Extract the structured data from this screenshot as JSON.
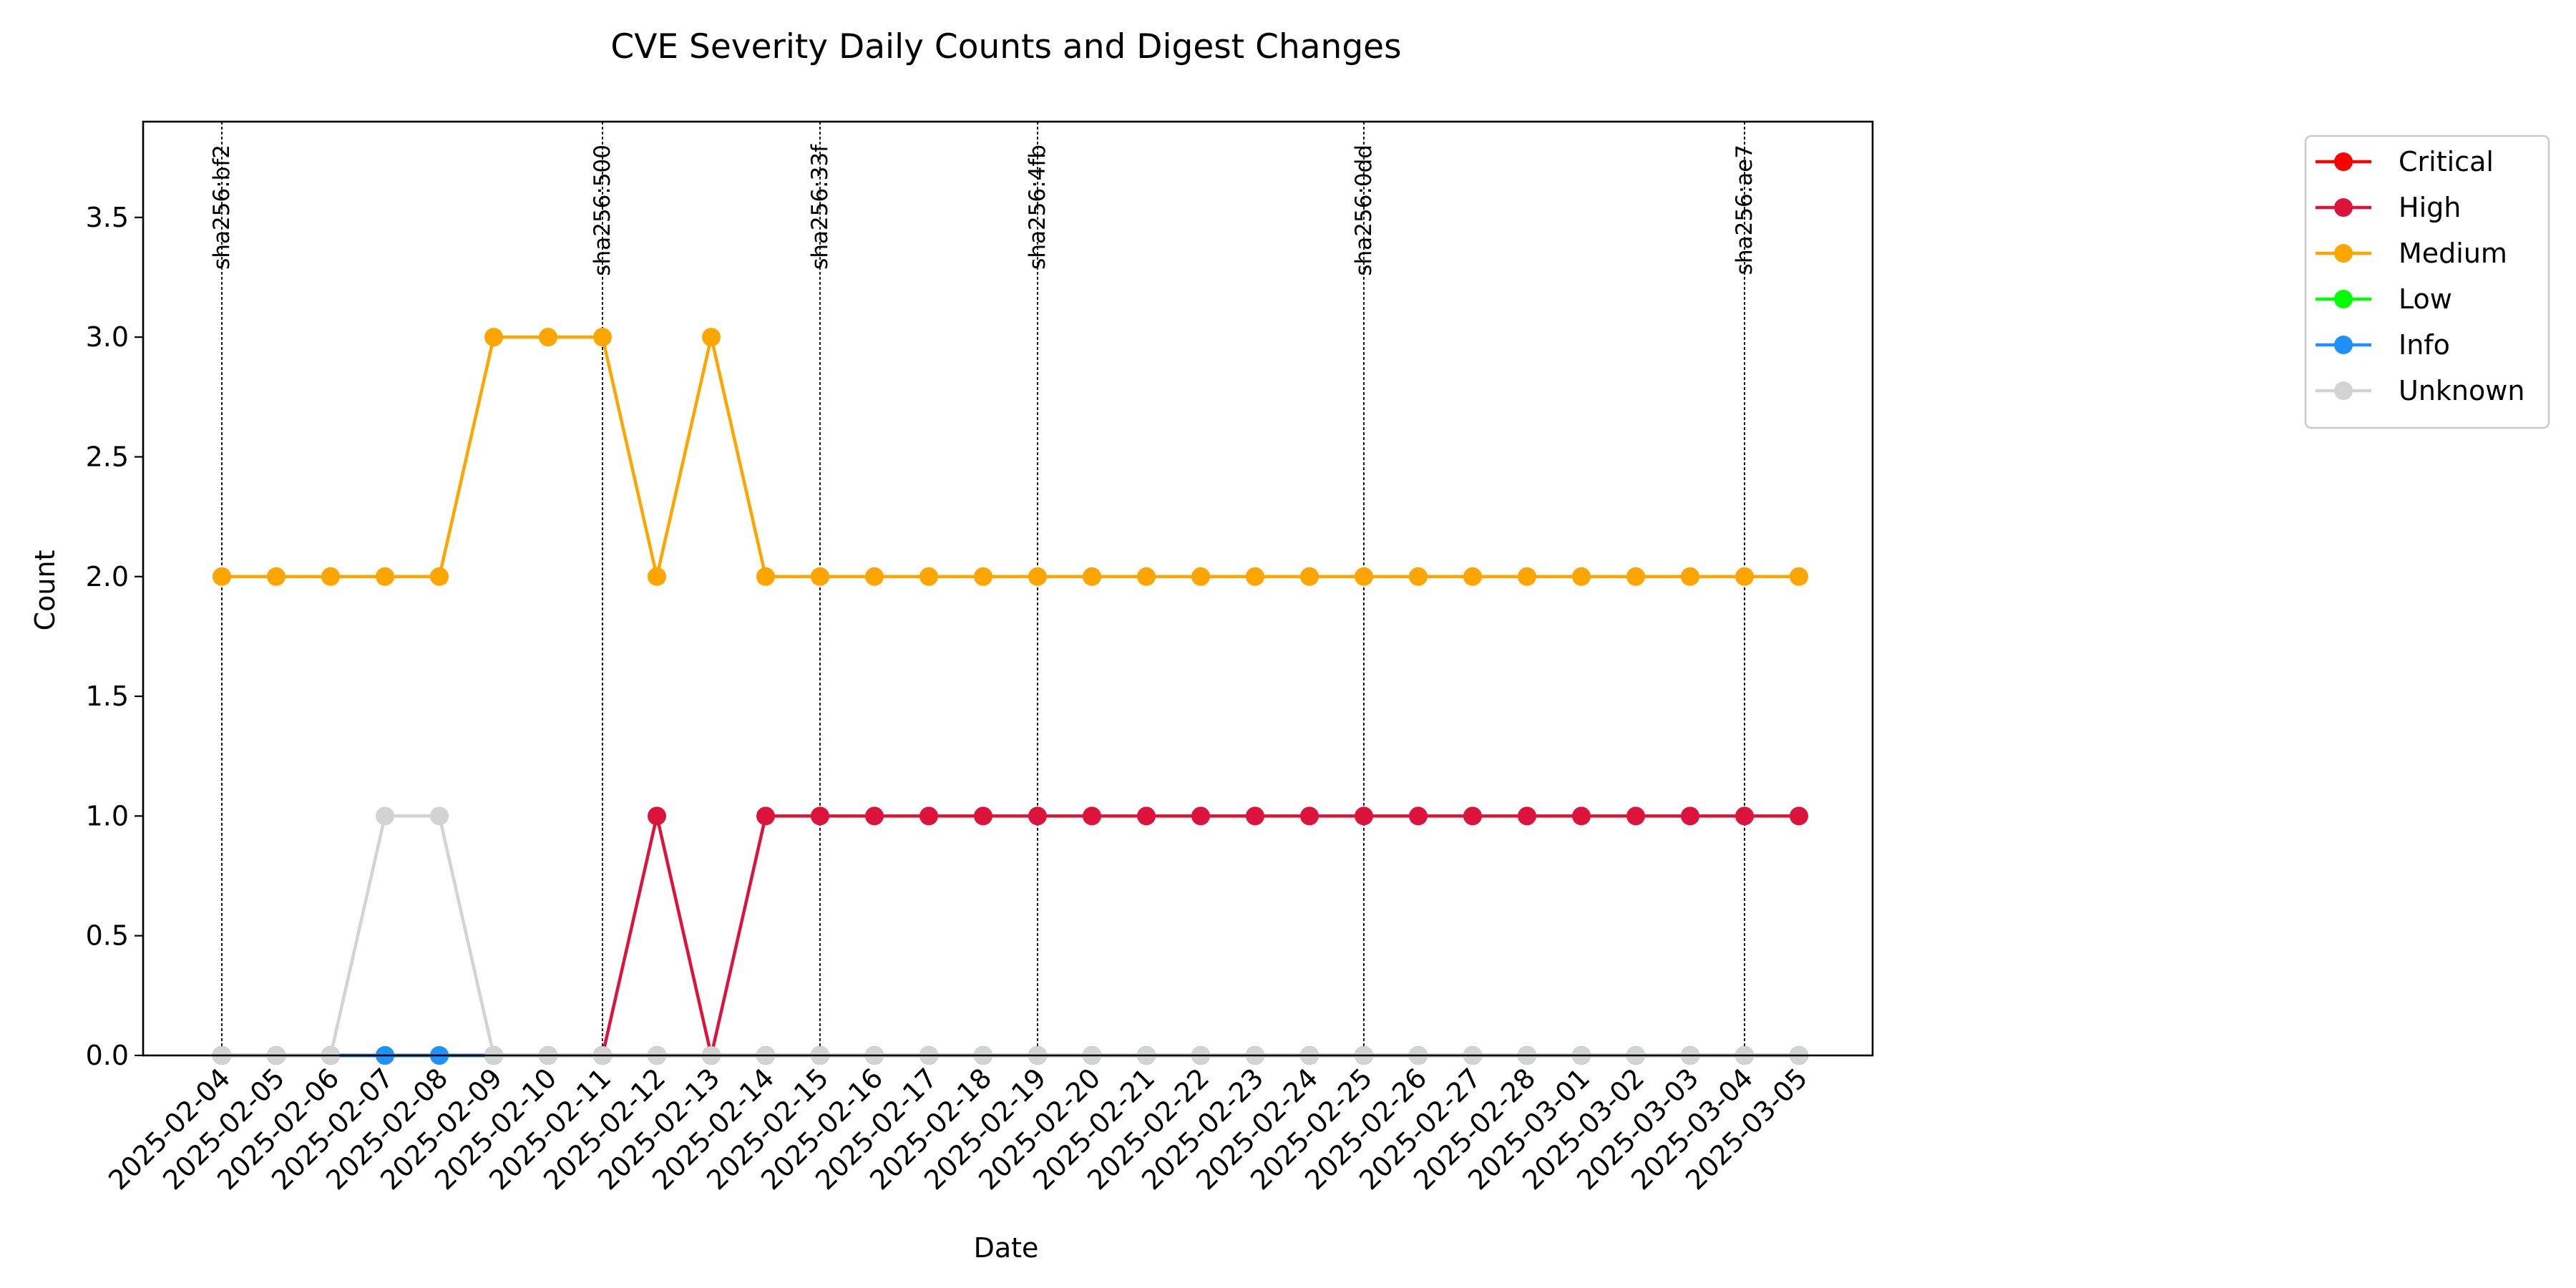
{
  "chart_data": {
    "type": "line",
    "title": "CVE Severity Daily Counts and Digest Changes",
    "xlabel": "Date",
    "ylabel": "Count",
    "ylim": [
      0,
      3.9
    ],
    "yticks": [
      "0.0",
      "0.5",
      "1.0",
      "1.5",
      "2.0",
      "2.5",
      "3.0",
      "3.5"
    ],
    "ytick_values": [
      0,
      0.5,
      1,
      1.5,
      2,
      2.5,
      3,
      3.5
    ],
    "grid": false,
    "legend_position": "outside right, top",
    "x": [
      "2025-02-04",
      "2025-02-05",
      "2025-02-06",
      "2025-02-07",
      "2025-02-08",
      "2025-02-09",
      "2025-02-10",
      "2025-02-11",
      "2025-02-12",
      "2025-02-13",
      "2025-02-14",
      "2025-02-15",
      "2025-02-16",
      "2025-02-17",
      "2025-02-18",
      "2025-02-19",
      "2025-02-20",
      "2025-02-21",
      "2025-02-22",
      "2025-02-23",
      "2025-02-24",
      "2025-02-25",
      "2025-02-26",
      "2025-02-27",
      "2025-02-28",
      "2025-03-01",
      "2025-03-02",
      "2025-03-03",
      "2025-03-04",
      "2025-03-05"
    ],
    "series": [
      {
        "name": "Critical",
        "color": "#ff0000",
        "values": [
          0,
          0,
          0,
          0,
          0,
          0,
          0,
          0,
          0,
          0,
          0,
          0,
          0,
          0,
          0,
          0,
          0,
          0,
          0,
          0,
          0,
          0,
          0,
          0,
          0,
          0,
          0,
          0,
          0,
          0
        ]
      },
      {
        "name": "High",
        "color": "#dc143c",
        "values": [
          0,
          0,
          0,
          0,
          0,
          0,
          0,
          0,
          1,
          0,
          1,
          1,
          1,
          1,
          1,
          1,
          1,
          1,
          1,
          1,
          1,
          1,
          1,
          1,
          1,
          1,
          1,
          1,
          1,
          1
        ]
      },
      {
        "name": "Medium",
        "color": "#ffa500",
        "values": [
          2,
          2,
          2,
          2,
          2,
          3,
          3,
          3,
          2,
          3,
          2,
          2,
          2,
          2,
          2,
          2,
          2,
          2,
          2,
          2,
          2,
          2,
          2,
          2,
          2,
          2,
          2,
          2,
          2,
          2
        ]
      },
      {
        "name": "Low",
        "color": "#00ff00",
        "values": [
          0,
          0,
          0,
          0,
          0,
          0,
          0,
          0,
          0,
          0,
          0,
          0,
          0,
          0,
          0,
          0,
          0,
          0,
          0,
          0,
          0,
          0,
          0,
          0,
          0,
          0,
          0,
          0,
          0,
          0
        ]
      },
      {
        "name": "Info",
        "color": "#1e90ff",
        "values": [
          0,
          0,
          0,
          0,
          0,
          0,
          0,
          0,
          0,
          0,
          0,
          0,
          0,
          0,
          0,
          0,
          0,
          0,
          0,
          0,
          0,
          0,
          0,
          0,
          0,
          0,
          0,
          0,
          0,
          0
        ]
      },
      {
        "name": "Unknown",
        "color": "#d3d3d3",
        "values": [
          0,
          0,
          0,
          1,
          1,
          0,
          0,
          0,
          0,
          0,
          0,
          0,
          0,
          0,
          0,
          0,
          0,
          0,
          0,
          0,
          0,
          0,
          0,
          0,
          0,
          0,
          0,
          0,
          0,
          0
        ]
      }
    ],
    "annotations": [
      {
        "x": "2025-02-04",
        "label": "sha256:bf2"
      },
      {
        "x": "2025-02-11",
        "label": "sha256:500"
      },
      {
        "x": "2025-02-15",
        "label": "sha256:33f"
      },
      {
        "x": "2025-02-19",
        "label": "sha256:4fb"
      },
      {
        "x": "2025-02-25",
        "label": "sha256:0dd"
      },
      {
        "x": "2025-03-04",
        "label": "sha256:ae7"
      }
    ]
  }
}
